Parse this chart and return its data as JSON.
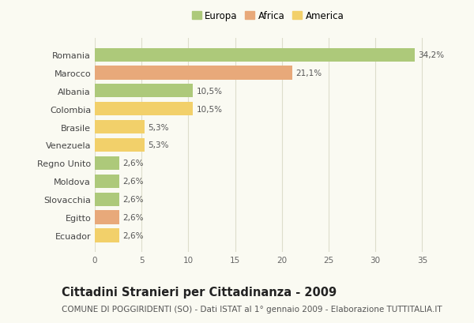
{
  "countries": [
    "Romania",
    "Marocco",
    "Albania",
    "Colombia",
    "Brasile",
    "Venezuela",
    "Regno Unito",
    "Moldova",
    "Slovacchia",
    "Egitto",
    "Ecuador"
  ],
  "values": [
    34.2,
    21.1,
    10.5,
    10.5,
    5.3,
    5.3,
    2.6,
    2.6,
    2.6,
    2.6,
    2.6
  ],
  "labels": [
    "34,2%",
    "21,1%",
    "10,5%",
    "10,5%",
    "5,3%",
    "5,3%",
    "2,6%",
    "2,6%",
    "2,6%",
    "2,6%",
    "2,6%"
  ],
  "colors": [
    "#adc97a",
    "#e8a97a",
    "#adc97a",
    "#f2d06a",
    "#f2d06a",
    "#f2d06a",
    "#adc97a",
    "#adc97a",
    "#adc97a",
    "#e8a97a",
    "#f2d06a"
  ],
  "legend_labels": [
    "Europa",
    "Africa",
    "America"
  ],
  "legend_colors": [
    "#adc97a",
    "#e8a97a",
    "#f2d06a"
  ],
  "title": "Cittadini Stranieri per Cittadinanza - 2009",
  "subtitle": "COMUNE DI POGGIRIDENTI (SO) - Dati ISTAT al 1° gennaio 2009 - Elaborazione TUTTITALIA.IT",
  "xlim": [
    0,
    37
  ],
  "xticks": [
    0,
    5,
    10,
    15,
    20,
    25,
    30,
    35
  ],
  "background_color": "#fafaf2",
  "grid_color": "#ddddcc",
  "bar_height": 0.75,
  "title_fontsize": 10.5,
  "subtitle_fontsize": 7.5,
  "label_fontsize": 7.5,
  "ytick_fontsize": 8,
  "xtick_fontsize": 7.5
}
